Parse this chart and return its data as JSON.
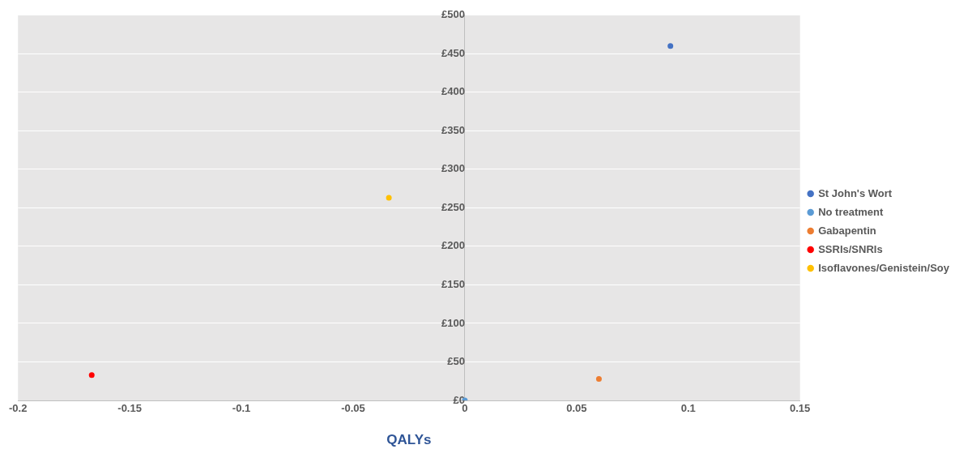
{
  "chart_data": {
    "type": "scatter",
    "xlabel": "QALYs",
    "series": [
      {
        "name": "St John's Wort",
        "color": "#4472c4",
        "x": [
          0.092
        ],
        "values": [
          460
        ]
      },
      {
        "name": "No treatment",
        "color": "#5b9bd5",
        "x": [
          0
        ],
        "values": [
          0
        ]
      },
      {
        "name": "Gabapentin",
        "color": "#ed7d31",
        "x": [
          0.06
        ],
        "values": [
          28
        ]
      },
      {
        "name": "SSRIs/SNRIs",
        "color": "#ff0000",
        "x": [
          -0.167
        ],
        "values": [
          33
        ]
      },
      {
        "name": "Isoflavones/Genistein/Soy",
        "color": "#ffc000",
        "x": [
          -0.034
        ],
        "values": [
          263
        ]
      }
    ],
    "xlim": [
      -0.2,
      0.15
    ],
    "xticks": [
      -0.2,
      -0.15,
      -0.1,
      -0.05,
      0,
      0.05,
      0.1,
      0.15
    ],
    "ylim": [
      0,
      500
    ],
    "yticks": [
      {
        "value": 0,
        "label": "£0"
      },
      {
        "value": 50,
        "label": "£50"
      },
      {
        "value": 100,
        "label": "£100"
      },
      {
        "value": 150,
        "label": "£150"
      },
      {
        "value": 200,
        "label": "£200"
      },
      {
        "value": 250,
        "label": "£250"
      },
      {
        "value": 300,
        "label": "£300"
      },
      {
        "value": 350,
        "label": "£350"
      },
      {
        "value": 400,
        "label": "£400"
      },
      {
        "value": 450,
        "label": "£450"
      },
      {
        "value": 500,
        "label": "£500"
      }
    ],
    "grid": "y",
    "legend": "right",
    "marker": "circle"
  }
}
